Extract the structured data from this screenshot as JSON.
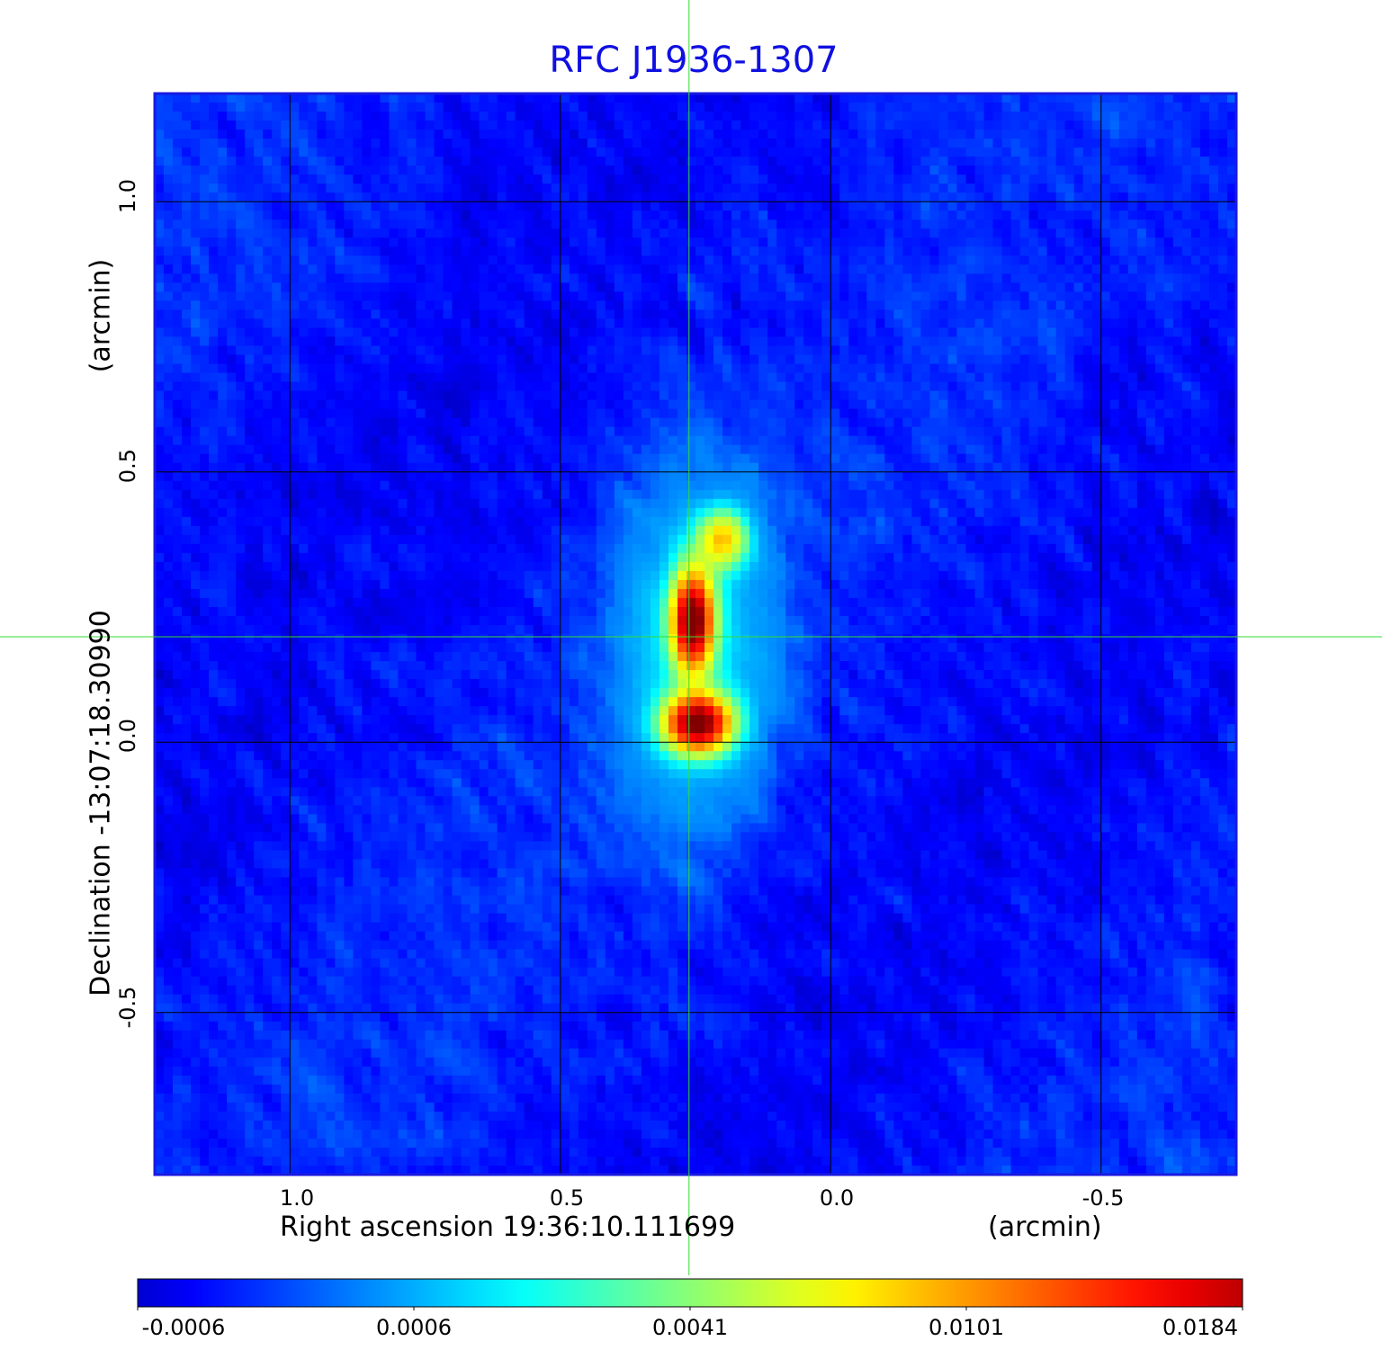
{
  "chart_data": {
    "type": "heatmap",
    "title": "RFC J1936-1307",
    "xlabel": "Right ascension  19:36:10.111699",
    "xunit": "(arcmin)",
    "ylabel": "Declination  -13:07:18.30990",
    "yunit": "(arcmin)",
    "xlim": [
      1.25,
      -0.75
    ],
    "ylim": [
      -0.8,
      1.2
    ],
    "xticks": [
      1.0,
      0.5,
      0.0,
      -0.5
    ],
    "xtick_labels": [
      "1.0",
      "0.5",
      "0.0",
      "-0.5"
    ],
    "yticks": [
      1.0,
      0.5,
      0.0,
      -0.5
    ],
    "ytick_labels": [
      "1.0",
      "0.5",
      "0.0",
      "-0.5"
    ],
    "grid": true,
    "crosshair": {
      "x": 0.262,
      "y": 0.195
    },
    "colormap": "jet",
    "colorbar": {
      "position": "bottom",
      "ticks": [
        -0.0006,
        0.0006,
        0.0041,
        0.0101,
        0.0184
      ],
      "tick_labels": [
        "-0.0006",
        "0.0006",
        "0.0041",
        "0.0101",
        "0.0184"
      ]
    },
    "background_flux": {
      "mean": 0.0001,
      "rms": 0.0003
    },
    "source_components": [
      {
        "x": 0.255,
        "y": 0.225,
        "peak": 0.0184,
        "sigma_x": 0.025,
        "sigma_y": 0.06
      },
      {
        "x": 0.245,
        "y": 0.035,
        "peak": 0.018,
        "sigma_x": 0.04,
        "sigma_y": 0.035
      },
      {
        "x": 0.2,
        "y": 0.375,
        "peak": 0.0075,
        "sigma_x": 0.03,
        "sigma_y": 0.035
      },
      {
        "x": 0.25,
        "y": 0.17,
        "peak": 0.002,
        "sigma_x": 0.09,
        "sigma_y": 0.2
      }
    ]
  }
}
